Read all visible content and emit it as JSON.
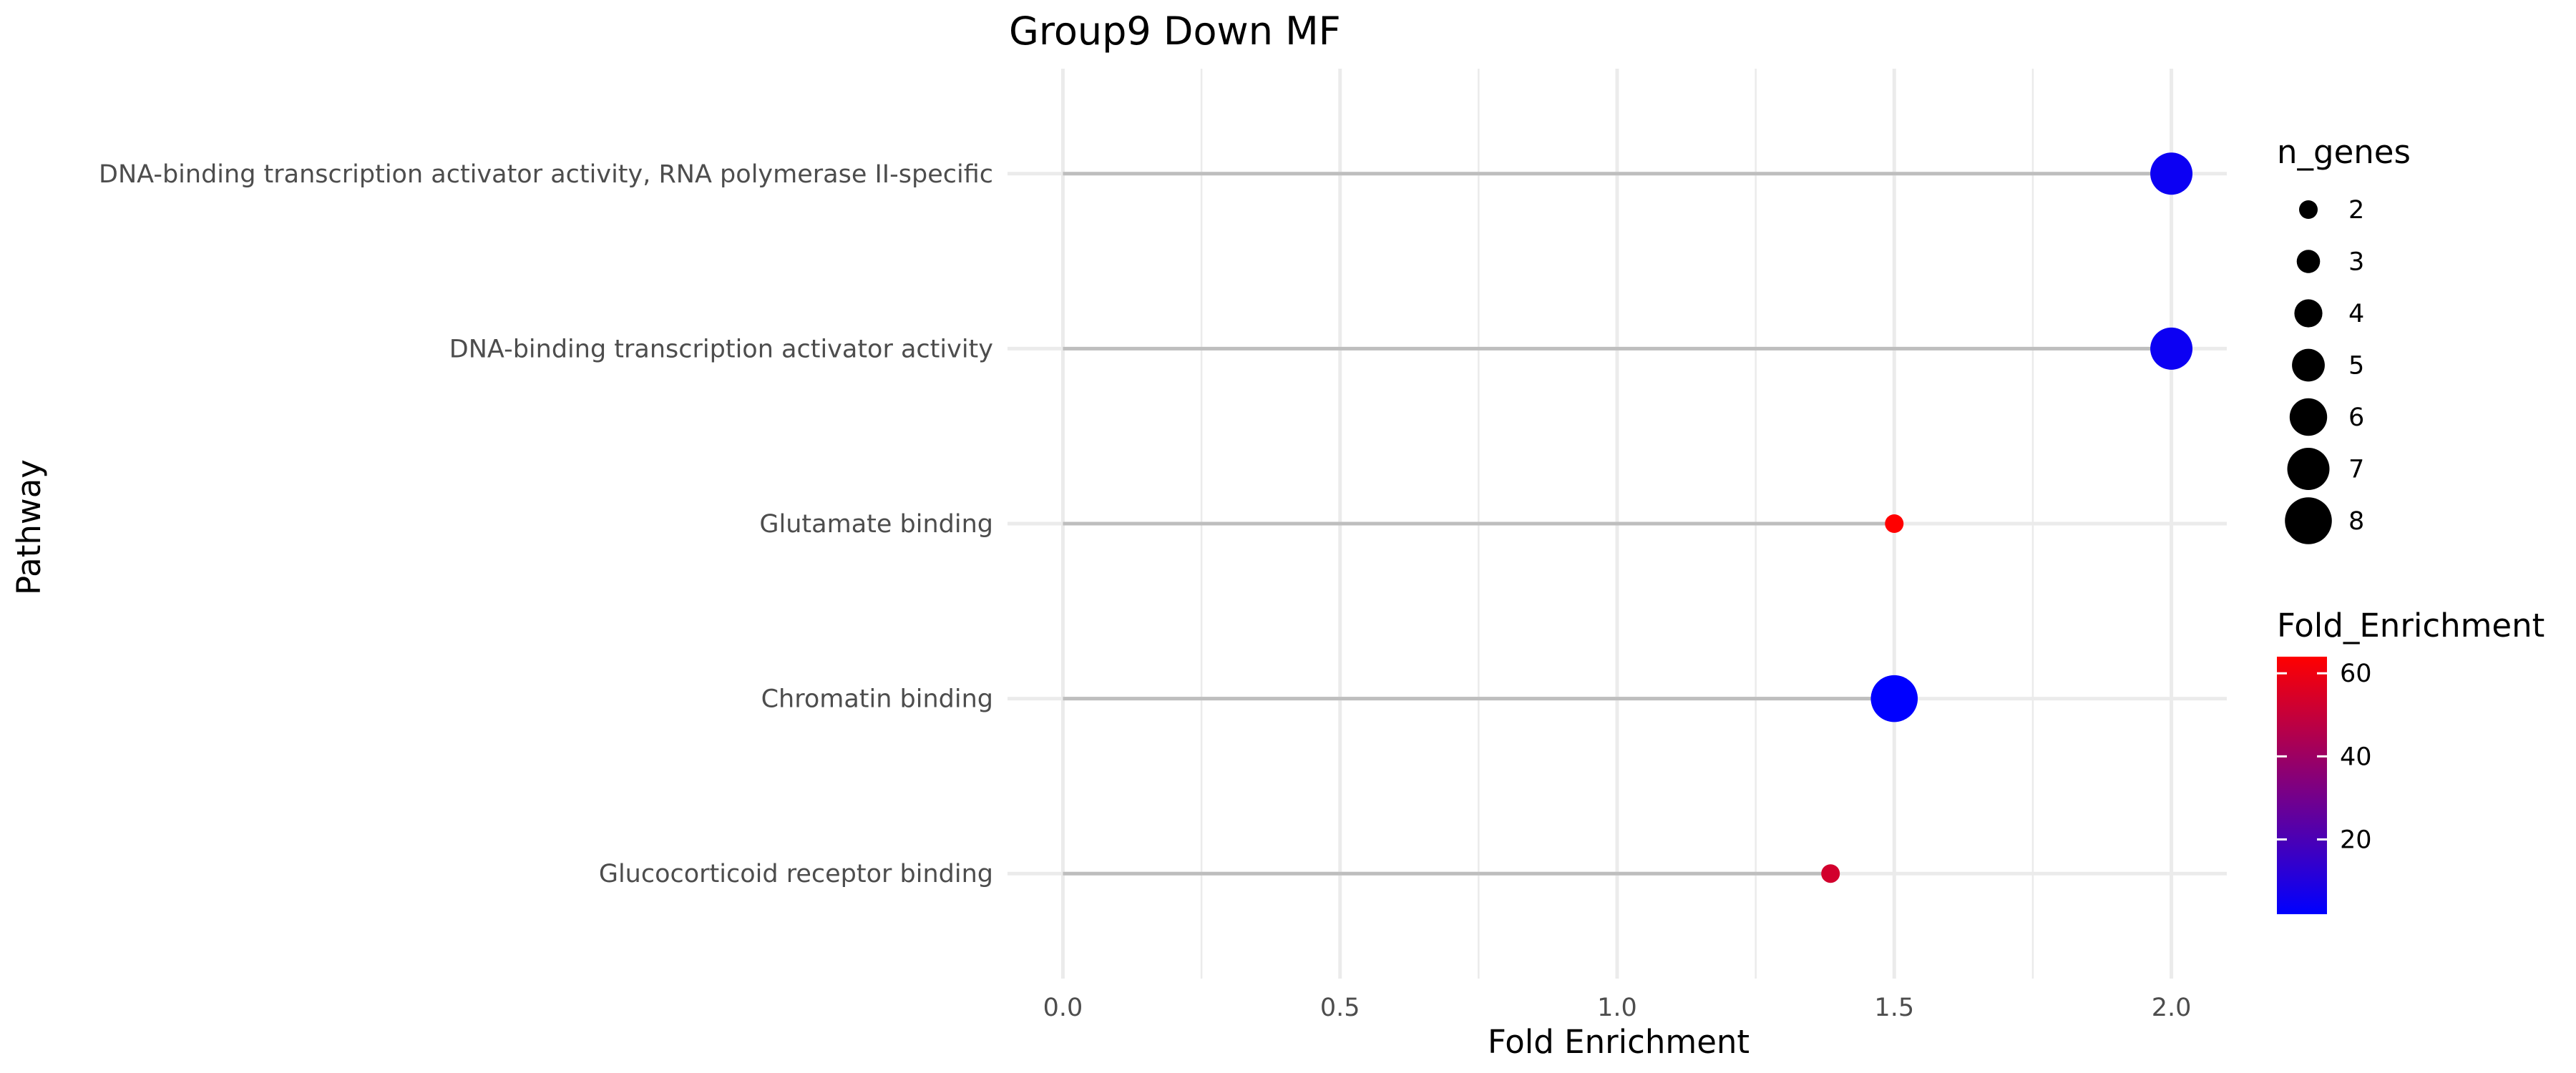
{
  "chart_data": {
    "type": "scatter",
    "title": "Group9 Down MF",
    "xlabel": "Fold Enrichment",
    "ylabel": "Pathway",
    "xlim": [
      -0.1,
      2.1
    ],
    "x_ticks": [
      "0.0",
      "0.5",
      "1.0",
      "1.5",
      "2.0"
    ],
    "grid": true,
    "categories": [
      "DNA-binding transcription activator activity, RNA polymerase II-specific",
      "DNA-binding transcription activator activity",
      "Glutamate binding",
      "Chromatin binding",
      "Glucocorticoid receptor binding"
    ],
    "points": [
      {
        "pathway": "DNA-binding transcription activator activity, RNA polymerase II-specific",
        "x": 2.0,
        "n_genes": 7,
        "fold_enrichment": 5
      },
      {
        "pathway": "DNA-binding transcription activator activity",
        "x": 2.0,
        "n_genes": 7,
        "fold_enrichment": 5
      },
      {
        "pathway": "Glutamate binding",
        "x": 1.5,
        "n_genes": 2,
        "fold_enrichment": 64
      },
      {
        "pathway": "Chromatin binding",
        "x": 1.5,
        "n_genes": 8,
        "fold_enrichment": 2
      },
      {
        "pathway": "Glucocorticoid receptor binding",
        "x": 1.385,
        "n_genes": 2,
        "fold_enrichment": 53
      }
    ],
    "size_legend": {
      "title": "n_genes",
      "values": [
        2,
        3,
        4,
        5,
        6,
        7,
        8
      ],
      "labels": [
        "2",
        "3",
        "4",
        "5",
        "6",
        "7",
        "8"
      ],
      "color": "#000000"
    },
    "color_legend": {
      "title": "Fold_Enrichment",
      "range": [
        2,
        64
      ],
      "ticks": [
        20,
        40,
        60
      ],
      "tick_labels": [
        "20",
        "40",
        "60"
      ],
      "low_color": "#0000ff",
      "high_color": "#ff0000"
    },
    "legend_position": "right",
    "stem_color": "#bebebe"
  }
}
